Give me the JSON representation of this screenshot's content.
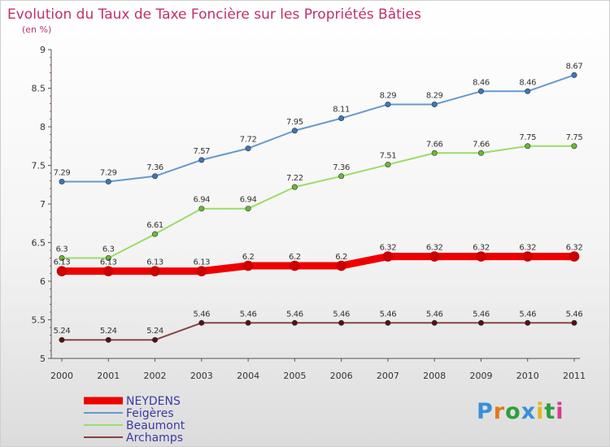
{
  "chart_data": {
    "type": "line",
    "title": "Evolution du Taux de Taxe Foncière sur les Propriétés Bâties",
    "subtitle": "(en %)",
    "x": [
      2000,
      2001,
      2002,
      2003,
      2004,
      2005,
      2006,
      2007,
      2008,
      2009,
      2010,
      2011
    ],
    "ylim": [
      5,
      9
    ],
    "yticks": [
      5,
      5.5,
      6,
      6.5,
      7,
      7.5,
      8,
      8.5,
      9
    ],
    "ytick_labels": [
      "5",
      "5.5",
      "6",
      "6.5",
      "7",
      "7.5",
      "8",
      "8.5",
      "9"
    ],
    "grid": false,
    "legend_position": "bottom-left",
    "series": [
      {
        "name": "NEYDENS",
        "color": "#ee0000",
        "point_color": "#cc0000",
        "values": [
          6.13,
          6.13,
          6.13,
          6.13,
          6.2,
          6.2,
          6.2,
          6.32,
          6.32,
          6.32,
          6.32,
          6.32
        ],
        "labels": [
          "6.13",
          "6.13",
          "6.13",
          "6.13",
          "6.2",
          "6.2",
          "6.2",
          "6.32",
          "6.32",
          "6.32",
          "6.32",
          "6.32"
        ]
      },
      {
        "name": "Feigères",
        "color": "#6699cc",
        "point_color": "#3a78b8",
        "values": [
          7.29,
          7.29,
          7.36,
          7.57,
          7.72,
          7.95,
          8.11,
          8.29,
          8.29,
          8.46,
          8.46,
          8.67
        ],
        "labels": [
          "7.29",
          "7.29",
          "7.36",
          "7.57",
          "7.72",
          "7.95",
          "8.11",
          "8.29",
          "8.29",
          "8.46",
          "8.46",
          "8.67"
        ]
      },
      {
        "name": "Beaumont",
        "color": "#99dd66",
        "point_color": "#66bb33",
        "values": [
          6.3,
          6.3,
          6.61,
          6.94,
          6.94,
          7.22,
          7.36,
          7.51,
          7.66,
          7.66,
          7.75,
          7.75
        ],
        "labels": [
          "6.3",
          "6.3",
          "6.61",
          "6.94",
          "6.94",
          "7.22",
          "7.36",
          "7.51",
          "7.66",
          "7.66",
          "7.75",
          "7.75"
        ]
      },
      {
        "name": "Archamps",
        "color": "#884444",
        "point_color": "#551111",
        "values": [
          5.24,
          5.24,
          5.24,
          5.46,
          5.46,
          5.46,
          5.46,
          5.46,
          5.46,
          5.46,
          5.46,
          5.46
        ],
        "labels": [
          "5.24",
          "5.24",
          "5.24",
          "5.46",
          "5.46",
          "5.46",
          "5.46",
          "5.46",
          "5.46",
          "5.46",
          "5.46",
          "5.46"
        ]
      }
    ]
  },
  "logo": {
    "text": "Proxiti",
    "letters": [
      "P",
      "r",
      "o",
      "x",
      "i",
      "t",
      "i"
    ],
    "colors": [
      "#3a8fd8",
      "#e07a1a",
      "#2e9e3e",
      "#3a8fd8",
      "#e0b81a",
      "#2e9e3e",
      "#d83a8a"
    ]
  }
}
